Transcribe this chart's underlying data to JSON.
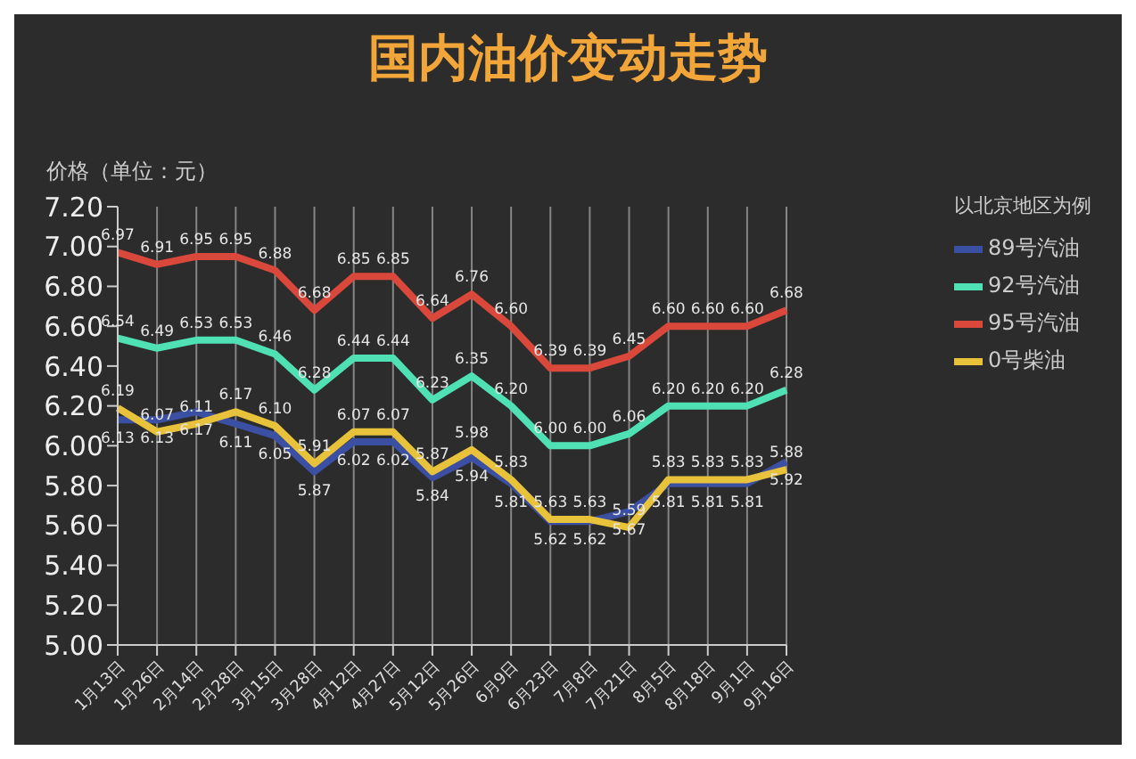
{
  "chart_data": {
    "type": "line",
    "title": "国内油价变动走势",
    "ylabel": "价格（单位：元）",
    "legend_title": "以北京地区为例",
    "categories": [
      "1月13日",
      "1月26日",
      "2月14日",
      "2月28日",
      "3月15日",
      "3月28日",
      "4月12日",
      "4月27日",
      "5月12日",
      "5月26日",
      "6月9日",
      "6月23日",
      "7月8日",
      "7月21日",
      "8月5日",
      "8月18日",
      "9月1日",
      "9月16日"
    ],
    "series": [
      {
        "name": "89号汽油",
        "color": "#3b4fa3",
        "values": [
          6.13,
          6.13,
          6.17,
          6.11,
          6.05,
          5.87,
          6.02,
          6.02,
          5.84,
          5.94,
          5.81,
          5.62,
          5.62,
          5.67,
          5.81,
          5.81,
          5.81,
          5.92
        ],
        "value_labels": [
          "6.13",
          "6.13",
          "6.17",
          "6.11",
          "6.05",
          "5.87",
          "6.02",
          "6.02",
          "5.84",
          "5.94",
          "5.81",
          "5.62",
          "5.62",
          "5.67",
          "5.81",
          "5.81",
          "5.81",
          "5.92"
        ]
      },
      {
        "name": "92号汽油",
        "color": "#4fe0b4",
        "values": [
          6.54,
          6.49,
          6.53,
          6.53,
          6.46,
          6.28,
          6.44,
          6.44,
          6.23,
          6.35,
          6.2,
          6.0,
          6.0,
          6.06,
          6.2,
          6.2,
          6.2,
          6.28
        ],
        "value_labels": [
          "6.54",
          "6.49",
          "6.53",
          "6.53",
          "6.46",
          "6.28",
          "6.44",
          "6.44",
          "6.23",
          "6.35",
          "6.20",
          "6.00",
          "6.00",
          "6.06",
          "6.20",
          "6.20",
          "6.20",
          "6.28"
        ]
      },
      {
        "name": "95号汽油",
        "color": "#d9483a",
        "values": [
          6.97,
          6.91,
          6.95,
          6.95,
          6.88,
          6.68,
          6.85,
          6.85,
          6.64,
          6.76,
          6.6,
          6.39,
          6.39,
          6.45,
          6.6,
          6.6,
          6.6,
          6.68
        ],
        "value_labels": [
          "6.97",
          "6.91",
          "6.95",
          "6.95",
          "6.88",
          "6.68",
          "6.85",
          "6.85",
          "6.64",
          "6.76",
          "6.60",
          "6.39",
          "6.39",
          "6.45",
          "6.60",
          "6.60",
          "6.60",
          "6.68"
        ]
      },
      {
        "name": "0号柴油",
        "color": "#e8c23a",
        "values": [
          6.19,
          6.07,
          6.11,
          6.17,
          6.1,
          5.91,
          6.07,
          6.07,
          5.87,
          5.98,
          5.83,
          5.63,
          5.63,
          5.59,
          5.83,
          5.83,
          5.83,
          5.88
        ],
        "value_labels": [
          "6.19",
          "6.07",
          "6.11",
          "6.17",
          "6.10",
          "5.91",
          "6.07",
          "6.07",
          "5.87",
          "5.98",
          "5.83",
          "5.63",
          "5.63",
          "5.59",
          "5.83",
          "5.83",
          "5.83",
          "5.88"
        ]
      }
    ],
    "ylim": [
      5.0,
      7.2
    ],
    "yticks": [
      {
        "value": 5.0,
        "label": "5.00"
      },
      {
        "value": 5.2,
        "label": "5.20"
      },
      {
        "value": 5.4,
        "label": "5.40"
      },
      {
        "value": 5.6,
        "label": "5.60"
      },
      {
        "value": 5.8,
        "label": "5.80"
      },
      {
        "value": 6.0,
        "label": "6.00"
      },
      {
        "value": 6.2,
        "label": "6.20"
      },
      {
        "value": 6.4,
        "label": "6.40"
      },
      {
        "value": 6.6,
        "label": "6.60"
      },
      {
        "value": 6.8,
        "label": "6.80"
      },
      {
        "value": 7.0,
        "label": "7.00"
      },
      {
        "value": 7.2,
        "label": "7.20"
      }
    ],
    "grid": "x",
    "legend": "right",
    "marker": "none",
    "line_style": "solid"
  }
}
